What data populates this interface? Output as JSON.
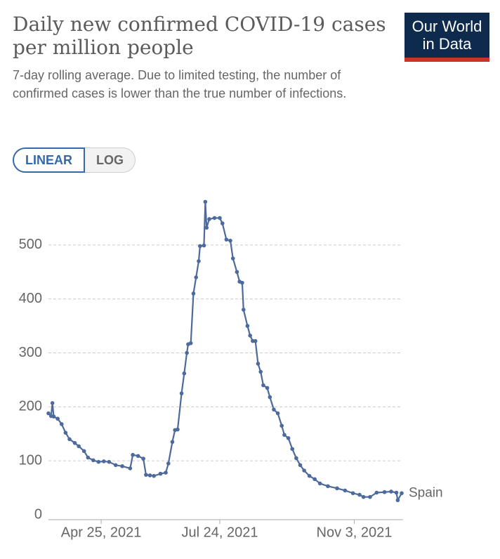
{
  "logo": "Our World in Data",
  "controls": [
    "LINEAR",
    "LOG"
  ],
  "chart_data": {
    "type": "line",
    "title": "Daily new confirmed COVID-19 cases per million people",
    "subtitle": "7-day rolling average. Due to limited testing, the number of confirmed cases is lower than the true number of infections.",
    "log_scale": false,
    "grid": true,
    "x": [
      "2021-03-16",
      "2021-03-18",
      "2021-03-19",
      "2021-03-20",
      "2021-03-23",
      "2021-03-26",
      "2021-03-29",
      "2021-04-01",
      "2021-04-05",
      "2021-04-08",
      "2021-04-12",
      "2021-04-15",
      "2021-04-19",
      "2021-04-23",
      "2021-04-27",
      "2021-05-01",
      "2021-05-06",
      "2021-05-11",
      "2021-05-17",
      "2021-05-19",
      "2021-05-23",
      "2021-05-27",
      "2021-05-29",
      "2021-06-01",
      "2021-06-04",
      "2021-06-09",
      "2021-06-13",
      "2021-06-15",
      "2021-06-18",
      "2021-06-20",
      "2021-06-22",
      "2021-06-25",
      "2021-06-27",
      "2021-06-29",
      "2021-06-30",
      "2021-07-02",
      "2021-07-04",
      "2021-07-06",
      "2021-07-08",
      "2021-07-09",
      "2021-07-12",
      "2021-07-13",
      "2021-07-14",
      "2021-07-16",
      "2021-07-20",
      "2021-07-24",
      "2021-07-26",
      "2021-07-29",
      "2021-08-01",
      "2021-08-03",
      "2021-08-06",
      "2021-08-08",
      "2021-08-10",
      "2021-08-11",
      "2021-08-14",
      "2021-08-16",
      "2021-08-18",
      "2021-08-20",
      "2021-08-22",
      "2021-08-24",
      "2021-08-26",
      "2021-08-29",
      "2021-08-31",
      "2021-09-03",
      "2021-09-06",
      "2021-09-09",
      "2021-09-11",
      "2021-09-14",
      "2021-09-17",
      "2021-09-20",
      "2021-09-23",
      "2021-09-26",
      "2021-09-30",
      "2021-10-04",
      "2021-10-08",
      "2021-10-14",
      "2021-10-21",
      "2021-10-27",
      "2021-11-02",
      "2021-11-07",
      "2021-11-10",
      "2021-11-15",
      "2021-11-20",
      "2021-11-26",
      "2021-12-01",
      "2021-12-05",
      "2021-12-06",
      "2021-12-09"
    ],
    "series": [
      {
        "name": "Spain",
        "color": "#4c6a9c",
        "values": [
          188,
          183,
          207,
          182,
          178,
          168,
          152,
          140,
          133,
          127,
          118,
          106,
          101,
          98,
          99,
          98,
          92,
          90,
          86,
          111,
          109,
          104,
          74,
          73,
          72,
          76,
          78,
          95,
          135,
          157,
          158,
          225,
          262,
          300,
          316,
          318,
          410,
          440,
          470,
          498,
          499,
          580,
          532,
          548,
          550,
          550,
          540,
          510,
          508,
          475,
          450,
          432,
          430,
          380,
          350,
          332,
          322,
          322,
          280,
          265,
          240,
          235,
          218,
          195,
          188,
          165,
          148,
          142,
          122,
          105,
          92,
          82,
          72,
          66,
          58,
          53,
          49,
          45,
          40,
          37,
          33,
          33,
          41,
          42,
          43,
          41,
          27,
          40
        ]
      }
    ],
    "xlim": [
      "2021-03-16",
      "2021-12-09"
    ],
    "xticks": [
      {
        "value": "2021-04-25",
        "label": "Apr 25, 2021"
      },
      {
        "value": "2021-07-24",
        "label": "Jul 24, 2021"
      },
      {
        "value": "2021-11-03",
        "label": "Nov 3, 2021"
      }
    ],
    "ylim": [
      0,
      600
    ],
    "yticks": [
      0,
      100,
      200,
      300,
      400,
      500
    ]
  }
}
